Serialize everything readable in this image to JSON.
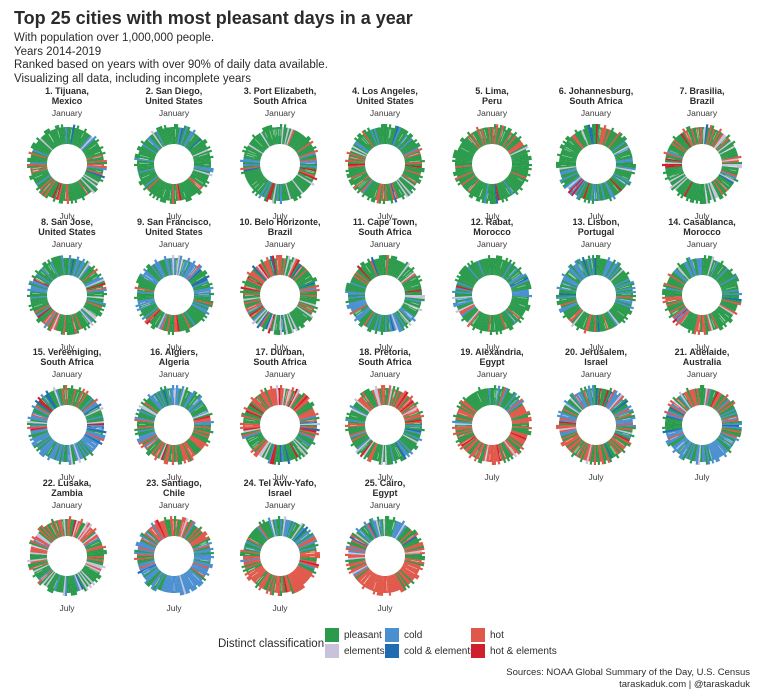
{
  "header": {
    "title": "Top 25 cities with most pleasant days in a year",
    "subtitle_lines": [
      "With population over 1,000,000 people.",
      "Years 2014-2019",
      "Ranked based on years with over 90% of daily data available.",
      "Visualizing all data, including incomplete years"
    ]
  },
  "chart_data": {
    "type": "radial-calendar-small-multiples",
    "description_text": "Visualizing all data, including incomplete years",
    "top_label": "January",
    "bottom_label": "July",
    "colors": {
      "pleasant": "#2a9a4b",
      "cold": "#4a8fcf",
      "hot": "#e0584a",
      "elements": "#c8c2dc",
      "cold_elements": "#1f6cb0",
      "hot_elements": "#cf1f2c"
    },
    "cities": [
      {
        "rank": "1.",
        "name": "Tijuana,",
        "country": "Mexico",
        "mix": {
          "pleasant": 0.78,
          "cold": 0.08,
          "hot": 0.08,
          "elements": 0.06
        },
        "cold_at": "jan",
        "hot_at": "jul"
      },
      {
        "rank": "2.",
        "name": "San Diego,",
        "country": "United States",
        "mix": {
          "pleasant": 0.8,
          "cold": 0.08,
          "hot": 0.08,
          "elements": 0.04
        },
        "cold_at": "jan",
        "hot_at": "jul"
      },
      {
        "rank": "3.",
        "name": "Port Elizabeth,",
        "country": "South Africa",
        "mix": {
          "pleasant": 0.72,
          "cold": 0.06,
          "hot": 0.12,
          "elements": 0.1
        },
        "cold_at": "jul",
        "hot_at": "jan"
      },
      {
        "rank": "4.",
        "name": "Los Angeles,",
        "country": "United States",
        "mix": {
          "pleasant": 0.74,
          "cold": 0.06,
          "hot": 0.16,
          "elements": 0.04
        },
        "cold_at": "jan",
        "hot_at": "jul"
      },
      {
        "rank": "5.",
        "name": "Lima,",
        "country": "Peru",
        "mix": {
          "pleasant": 0.86,
          "cold": 0.02,
          "hot": 0.1,
          "elements": 0.02
        },
        "cold_at": "jul",
        "hot_at": "jan"
      },
      {
        "rank": "6.",
        "name": "Johannesburg,",
        "country": "South Africa",
        "mix": {
          "pleasant": 0.66,
          "cold": 0.16,
          "hot": 0.06,
          "elements": 0.12
        },
        "cold_at": "jul",
        "hot_at": "jan"
      },
      {
        "rank": "7.",
        "name": "Brasilia,",
        "country": "Brazil",
        "mix": {
          "pleasant": 0.6,
          "cold": 0.02,
          "hot": 0.22,
          "elements": 0.16
        },
        "cold_at": "jul",
        "hot_at": "jan"
      },
      {
        "rank": "8.",
        "name": "San Jose,",
        "country": "United States",
        "mix": {
          "pleasant": 0.62,
          "cold": 0.22,
          "hot": 0.12,
          "elements": 0.04
        },
        "cold_at": "jan",
        "hot_at": "jul"
      },
      {
        "rank": "9.",
        "name": "San Francisco,",
        "country": "United States",
        "mix": {
          "pleasant": 0.58,
          "cold": 0.3,
          "hot": 0.06,
          "elements": 0.06
        },
        "cold_at": "jan",
        "hot_at": "jul"
      },
      {
        "rank": "10.",
        "name": "Belo Horizonte,",
        "country": "Brazil",
        "mix": {
          "pleasant": 0.56,
          "cold": 0.02,
          "hot": 0.28,
          "elements": 0.14
        },
        "cold_at": "jul",
        "hot_at": "jan"
      },
      {
        "rank": "11.",
        "name": "Cape Town,",
        "country": "South Africa",
        "mix": {
          "pleasant": 0.66,
          "cold": 0.12,
          "hot": 0.12,
          "elements": 0.1
        },
        "cold_at": "jul",
        "hot_at": "jan"
      },
      {
        "rank": "12.",
        "name": "Rabat,",
        "country": "Morocco",
        "mix": {
          "pleasant": 0.66,
          "cold": 0.2,
          "hot": 0.08,
          "elements": 0.06
        },
        "cold_at": "jan",
        "hot_at": "jul"
      },
      {
        "rank": "13.",
        "name": "Lisbon,",
        "country": "Portugal",
        "mix": {
          "pleasant": 0.56,
          "cold": 0.28,
          "hot": 0.1,
          "elements": 0.06
        },
        "cold_at": "jan",
        "hot_at": "jul"
      },
      {
        "rank": "14.",
        "name": "Casablanca,",
        "country": "Morocco",
        "mix": {
          "pleasant": 0.6,
          "cold": 0.16,
          "hot": 0.18,
          "elements": 0.06
        },
        "cold_at": "jan",
        "hot_at": "jul"
      },
      {
        "rank": "15.",
        "name": "Vereeniging,",
        "country": "South Africa",
        "mix": {
          "pleasant": 0.5,
          "cold": 0.3,
          "hot": 0.06,
          "elements": 0.14
        },
        "cold_at": "jul",
        "hot_at": "jan"
      },
      {
        "rank": "16.",
        "name": "Algiers,",
        "country": "Algeria",
        "mix": {
          "pleasant": 0.46,
          "cold": 0.22,
          "hot": 0.26,
          "elements": 0.06
        },
        "cold_at": "jan",
        "hot_at": "jul"
      },
      {
        "rank": "17.",
        "name": "Durban,",
        "country": "South Africa",
        "mix": {
          "pleasant": 0.48,
          "cold": 0.04,
          "hot": 0.34,
          "elements": 0.14
        },
        "cold_at": "jul",
        "hot_at": "jan"
      },
      {
        "rank": "18.",
        "name": "Pretoria,",
        "country": "South Africa",
        "mix": {
          "pleasant": 0.48,
          "cold": 0.1,
          "hot": 0.3,
          "elements": 0.12
        },
        "cold_at": "jul",
        "hot_at": "jan"
      },
      {
        "rank": "19.",
        "name": "Alexandria,",
        "country": "Egypt",
        "mix": {
          "pleasant": 0.42,
          "cold": 0.04,
          "hot": 0.5,
          "elements": 0.04
        },
        "cold_at": "jan",
        "hot_at": "jul"
      },
      {
        "rank": "20.",
        "name": "Jerusalem,",
        "country": "Israel",
        "mix": {
          "pleasant": 0.46,
          "cold": 0.24,
          "hot": 0.24,
          "elements": 0.06
        },
        "cold_at": "jan",
        "hot_at": "jul"
      },
      {
        "rank": "21.",
        "name": "Adelaide,",
        "country": "Australia",
        "mix": {
          "pleasant": 0.38,
          "cold": 0.46,
          "hot": 0.12,
          "elements": 0.04
        },
        "cold_at": "jul",
        "hot_at": "jan"
      },
      {
        "rank": "22.",
        "name": "Lusaka,",
        "country": "Zambia",
        "mix": {
          "pleasant": 0.48,
          "cold": 0.06,
          "hot": 0.3,
          "elements": 0.16
        },
        "cold_at": "jul",
        "hot_at": "jan"
      },
      {
        "rank": "23.",
        "name": "Santiago,",
        "country": "Chile",
        "mix": {
          "pleasant": 0.36,
          "cold": 0.4,
          "hot": 0.2,
          "elements": 0.04
        },
        "cold_at": "jul",
        "hot_at": "jan"
      },
      {
        "rank": "24.",
        "name": "Tel Aviv-Yafo,",
        "country": "Israel",
        "mix": {
          "pleasant": 0.36,
          "cold": 0.12,
          "hot": 0.48,
          "elements": 0.04
        },
        "cold_at": "jan",
        "hot_at": "jul"
      },
      {
        "rank": "25.",
        "name": "Cairo,",
        "country": "Egypt",
        "mix": {
          "pleasant": 0.3,
          "cold": 0.08,
          "hot": 0.58,
          "elements": 0.04
        },
        "cold_at": "jan",
        "hot_at": "jul"
      }
    ]
  },
  "legend": {
    "title": "Distinct classification",
    "items": [
      {
        "key": "pleasant",
        "label": "pleasant",
        "color": "#2a9a4b"
      },
      {
        "key": "cold",
        "label": "cold",
        "color": "#4a8fcf"
      },
      {
        "key": "hot",
        "label": "hot",
        "color": "#e0584a"
      },
      {
        "key": "elements",
        "label": "elements",
        "color": "#c8c2dc"
      },
      {
        "key": "cold_elements",
        "label": "cold & elements",
        "color": "#1f6cb0"
      },
      {
        "key": "hot_elements",
        "label": "hot & elements",
        "color": "#cf1f2c"
      }
    ]
  },
  "footer": {
    "source": "Sources: NOAA Global Summary of the Day, U.S. Census",
    "credit": "taraskaduk.com | @taraskaduk"
  }
}
